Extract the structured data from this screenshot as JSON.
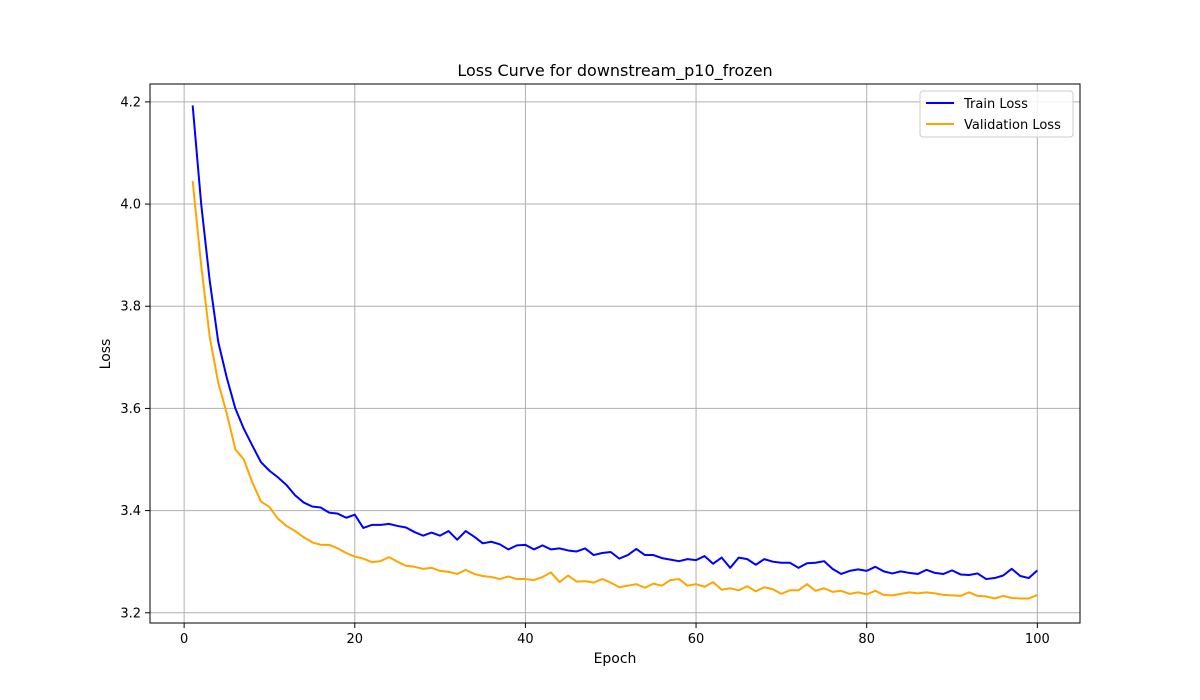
{
  "chart_data": {
    "type": "line",
    "title": "Loss Curve for downstream_p10_frozen",
    "xlabel": "Epoch",
    "ylabel": "Loss",
    "xlim": [
      -4,
      105
    ],
    "ylim": [
      3.18,
      4.235
    ],
    "xticks": [
      0,
      20,
      40,
      60,
      80,
      100
    ],
    "yticks": [
      3.2,
      3.4,
      3.6,
      3.8,
      4.0,
      4.2
    ],
    "ytick_labels": [
      "3.2",
      "3.4",
      "3.6",
      "3.8",
      "4.0",
      "4.2"
    ],
    "grid": true,
    "legend_position": "top-right",
    "series": [
      {
        "name": "Train Loss",
        "color": "#0000ff",
        "x": [
          1,
          2,
          3,
          4,
          5,
          6,
          7,
          8,
          9,
          10,
          11,
          12,
          13,
          14,
          15,
          16,
          17,
          18,
          19,
          20,
          21,
          22,
          23,
          24,
          25,
          26,
          27,
          28,
          29,
          30,
          31,
          32,
          33,
          34,
          35,
          36,
          37,
          38,
          39,
          40,
          41,
          42,
          43,
          44,
          45,
          46,
          47,
          48,
          49,
          50,
          51,
          52,
          53,
          54,
          55,
          56,
          57,
          58,
          59,
          60,
          61,
          62,
          63,
          64,
          65,
          66,
          67,
          68,
          69,
          70,
          71,
          72,
          73,
          74,
          75,
          76,
          77,
          78,
          79,
          80,
          81,
          82,
          83,
          84,
          85,
          86,
          87,
          88,
          89,
          90,
          91,
          92,
          93,
          94,
          95,
          96,
          97,
          98,
          99,
          100
        ],
        "values": [
          4.193,
          4.0,
          3.85,
          3.73,
          3.66,
          3.6,
          3.56,
          3.527,
          3.495,
          3.478,
          3.465,
          3.45,
          3.43,
          3.416,
          3.408,
          3.406,
          3.396,
          3.394,
          3.386,
          3.392,
          3.366,
          3.372,
          3.372,
          3.374,
          3.37,
          3.367,
          3.358,
          3.351,
          3.357,
          3.351,
          3.36,
          3.343,
          3.36,
          3.349,
          3.336,
          3.339,
          3.334,
          3.324,
          3.332,
          3.333,
          3.324,
          3.332,
          3.324,
          3.326,
          3.322,
          3.32,
          3.326,
          3.313,
          3.317,
          3.319,
          3.306,
          3.313,
          3.325,
          3.313,
          3.313,
          3.307,
          3.304,
          3.301,
          3.305,
          3.303,
          3.311,
          3.296,
          3.308,
          3.288,
          3.308,
          3.305,
          3.294,
          3.305,
          3.3,
          3.298,
          3.298,
          3.288,
          3.297,
          3.298,
          3.301,
          3.286,
          3.276,
          3.282,
          3.285,
          3.282,
          3.29,
          3.281,
          3.277,
          3.281,
          3.278,
          3.276,
          3.284,
          3.278,
          3.276,
          3.283,
          3.275,
          3.274,
          3.277,
          3.266,
          3.268,
          3.273,
          3.286,
          3.272,
          3.268,
          3.283
        ]
      },
      {
        "name": "Validation Loss",
        "color": "#ffa500",
        "x": [
          1,
          2,
          3,
          4,
          5,
          6,
          7,
          8,
          9,
          10,
          11,
          12,
          13,
          14,
          15,
          16,
          17,
          18,
          19,
          20,
          21,
          22,
          23,
          24,
          25,
          26,
          27,
          28,
          29,
          30,
          31,
          32,
          33,
          34,
          35,
          36,
          37,
          38,
          39,
          40,
          41,
          42,
          43,
          44,
          45,
          46,
          47,
          48,
          49,
          50,
          51,
          52,
          53,
          54,
          55,
          56,
          57,
          58,
          59,
          60,
          61,
          62,
          63,
          64,
          65,
          66,
          67,
          68,
          69,
          70,
          71,
          72,
          73,
          74,
          75,
          76,
          77,
          78,
          79,
          80,
          81,
          82,
          83,
          84,
          85,
          86,
          87,
          88,
          89,
          90,
          91,
          92,
          93,
          94,
          95,
          96,
          97,
          98,
          99,
          100
        ],
        "values": [
          4.045,
          3.88,
          3.74,
          3.65,
          3.59,
          3.52,
          3.5,
          3.455,
          3.418,
          3.407,
          3.384,
          3.37,
          3.36,
          3.348,
          3.338,
          3.333,
          3.333,
          3.326,
          3.317,
          3.31,
          3.306,
          3.299,
          3.301,
          3.309,
          3.3,
          3.292,
          3.29,
          3.286,
          3.288,
          3.282,
          3.28,
          3.276,
          3.284,
          3.276,
          3.272,
          3.27,
          3.266,
          3.271,
          3.266,
          3.266,
          3.264,
          3.27,
          3.279,
          3.26,
          3.273,
          3.261,
          3.262,
          3.259,
          3.266,
          3.259,
          3.25,
          3.253,
          3.256,
          3.249,
          3.257,
          3.253,
          3.264,
          3.266,
          3.253,
          3.256,
          3.251,
          3.26,
          3.245,
          3.248,
          3.244,
          3.252,
          3.242,
          3.25,
          3.246,
          3.237,
          3.244,
          3.244,
          3.256,
          3.243,
          3.248,
          3.241,
          3.243,
          3.237,
          3.24,
          3.236,
          3.243,
          3.235,
          3.234,
          3.237,
          3.24,
          3.238,
          3.24,
          3.238,
          3.235,
          3.234,
          3.233,
          3.24,
          3.233,
          3.232,
          3.228,
          3.233,
          3.229,
          3.228,
          3.228,
          3.235
        ]
      }
    ]
  }
}
